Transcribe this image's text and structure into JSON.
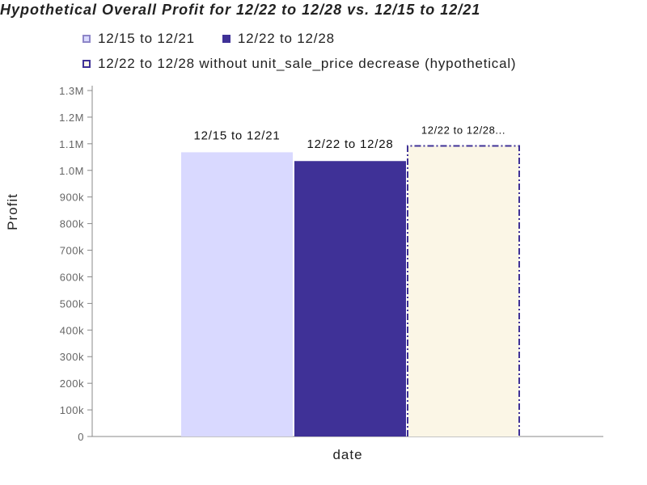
{
  "chart_data": {
    "type": "bar",
    "title": "Hypothetical Overall Profit for 12/22 to 12/28 vs. 12/15 to 12/21",
    "xlabel": "date",
    "ylabel": "Profit",
    "ylim": [
      0,
      1300000
    ],
    "yticks": [
      0,
      100000,
      200000,
      300000,
      400000,
      500000,
      600000,
      700000,
      800000,
      900000,
      1000000,
      1100000,
      1200000,
      1300000
    ],
    "ytick_labels": [
      "0",
      "100k",
      "200k",
      "300k",
      "400k",
      "500k",
      "600k",
      "700k",
      "800k",
      "900k",
      "1.0M",
      "1.1M",
      "1.2M",
      "1.3M"
    ],
    "grid": false,
    "legend_placement": "top",
    "series": [
      {
        "name": "12/15 to 12/21",
        "value": 1068000,
        "bar_label": "12/15 to 12/21",
        "color": "#d9d9ff",
        "style": "solid"
      },
      {
        "name": "12/22 to 12/28",
        "value": 1035000,
        "bar_label": "12/22 to 12/28",
        "color": "#3f3197",
        "style": "solid"
      },
      {
        "name": "12/22 to 12/28 without unit_sale_price decrease (hypothetical)",
        "value": 1092000,
        "bar_label": "12/22 to 12/28...",
        "color": "#fbf6e6",
        "border_color": "#3f3197",
        "style": "dashed"
      }
    ]
  }
}
